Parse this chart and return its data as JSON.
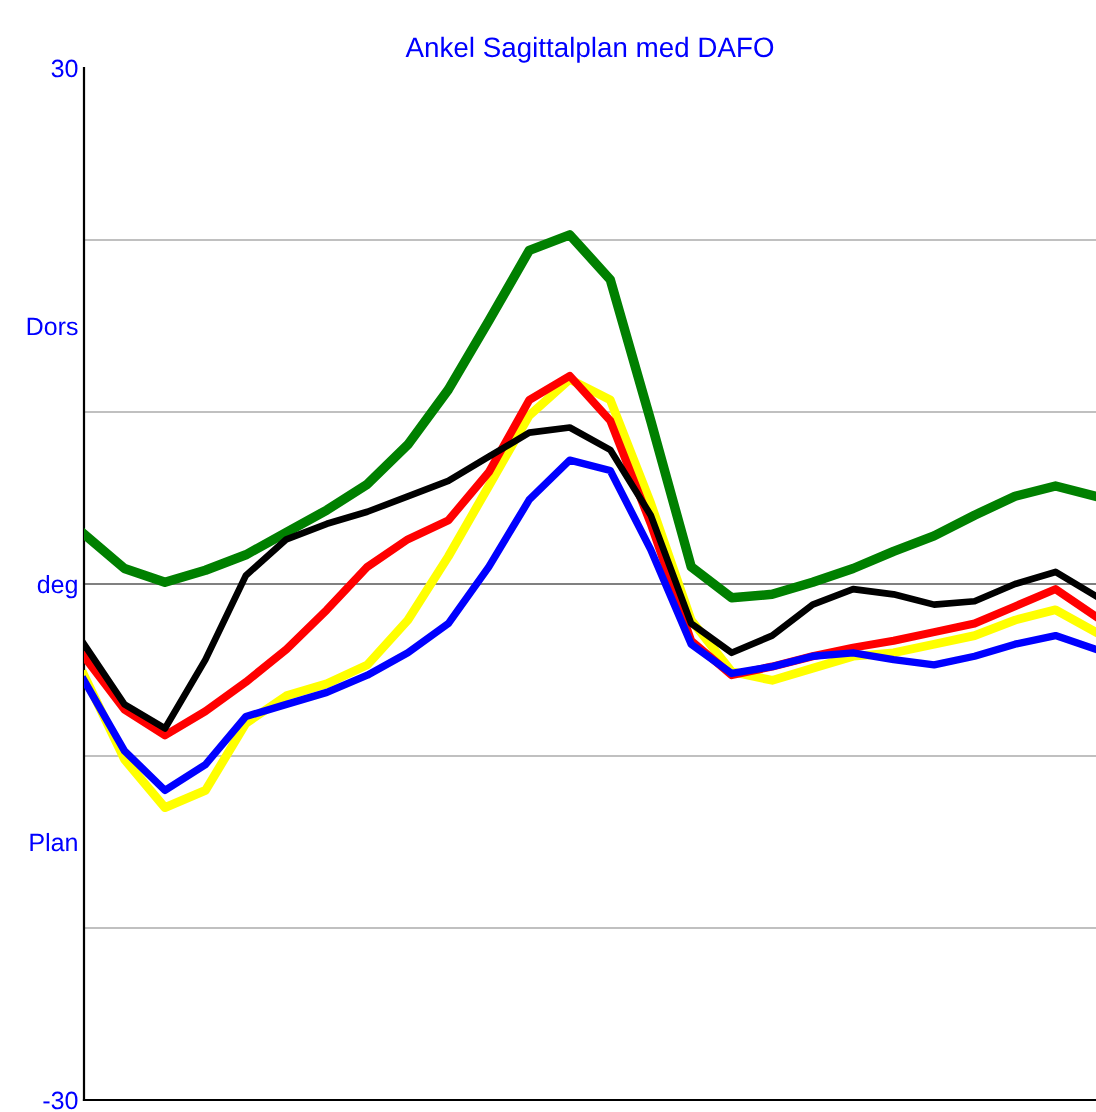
{
  "chart_data": {
    "type": "line",
    "title": "Ankel Sagittalplan med DAFO",
    "categories": [
      null,
      null,
      null,
      null,
      null,
      null,
      null,
      null,
      null,
      null,
      null,
      null,
      null,
      null,
      null,
      null,
      null,
      null,
      null,
      null,
      null,
      null,
      null,
      null,
      null,
      null
    ],
    "ylim": [
      -30,
      30
    ],
    "yticks": [
      30,
      {
        "value": 15,
        "label": "Dors"
      },
      {
        "value": 0,
        "label": "deg"
      },
      {
        "value": -15,
        "label": "Plan"
      },
      -30
    ],
    "ref_lines": [
      {
        "axis": "y",
        "value": 20,
        "color": "#c0c0c0"
      },
      {
        "axis": "y",
        "value": 10,
        "color": "#c0c0c0"
      },
      {
        "axis": "y",
        "value": 0,
        "color": "#808080"
      },
      {
        "axis": "y",
        "value": -10,
        "color": "#c0c0c0"
      },
      {
        "axis": "y",
        "value": -20,
        "color": "#c0c0c0"
      }
    ],
    "grid": false,
    "legend": false,
    "marker": "none",
    "line_style": "solid",
    "series": [
      {
        "color": "#008000",
        "values": [
          2.9,
          0.9,
          0.1,
          0.8,
          1.7,
          3.0,
          4.3,
          5.8,
          8.1,
          11.3,
          15.3,
          19.4,
          20.3,
          17.7,
          9.5,
          1.0,
          -0.8,
          -0.6,
          0.1,
          0.9,
          1.9,
          2.8,
          4.0,
          5.1,
          5.7,
          5.1
        ]
      },
      {
        "color": "#ffff00",
        "values": [
          -5.3,
          -10.2,
          -13.0,
          -12.0,
          -8.1,
          -6.5,
          -5.8,
          -4.7,
          -2.1,
          1.6,
          5.7,
          9.8,
          11.9,
          10.7,
          4.7,
          -2.1,
          -5.1,
          -5.6,
          -4.9,
          -4.2,
          -4.0,
          -3.5,
          -3.0,
          -2.1,
          -1.5,
          -2.8
        ]
      },
      {
        "color": "#ff0000",
        "values": [
          -4.2,
          -7.3,
          -8.8,
          -7.4,
          -5.7,
          -3.8,
          -1.5,
          1.0,
          2.6,
          3.7,
          6.5,
          10.7,
          12.1,
          9.5,
          3.5,
          -3.3,
          -5.3,
          -4.8,
          -4.2,
          -3.7,
          -3.3,
          -2.8,
          -2.3,
          -1.3,
          -0.3,
          -1.9
        ]
      },
      {
        "color": "#0000ff",
        "values": [
          -5.6,
          -9.7,
          -12.0,
          -10.5,
          -7.7,
          -7.0,
          -6.3,
          -5.3,
          -4.0,
          -2.3,
          1.0,
          4.9,
          7.2,
          6.6,
          2.0,
          -3.5,
          -5.2,
          -4.8,
          -4.2,
          -4.0,
          -4.4,
          -4.7,
          -4.2,
          -3.5,
          -3.0,
          -3.8
        ]
      },
      {
        "color": "#000000",
        "values": [
          -3.5,
          -7.0,
          -8.4,
          -4.4,
          0.5,
          2.6,
          3.5,
          4.2,
          5.1,
          6.0,
          7.4,
          8.8,
          9.1,
          7.8,
          4.0,
          -2.3,
          -4.0,
          -3.0,
          -1.2,
          -0.3,
          -0.6,
          -1.2,
          -1.0,
          0.0,
          0.7,
          -0.7
        ]
      }
    ]
  }
}
